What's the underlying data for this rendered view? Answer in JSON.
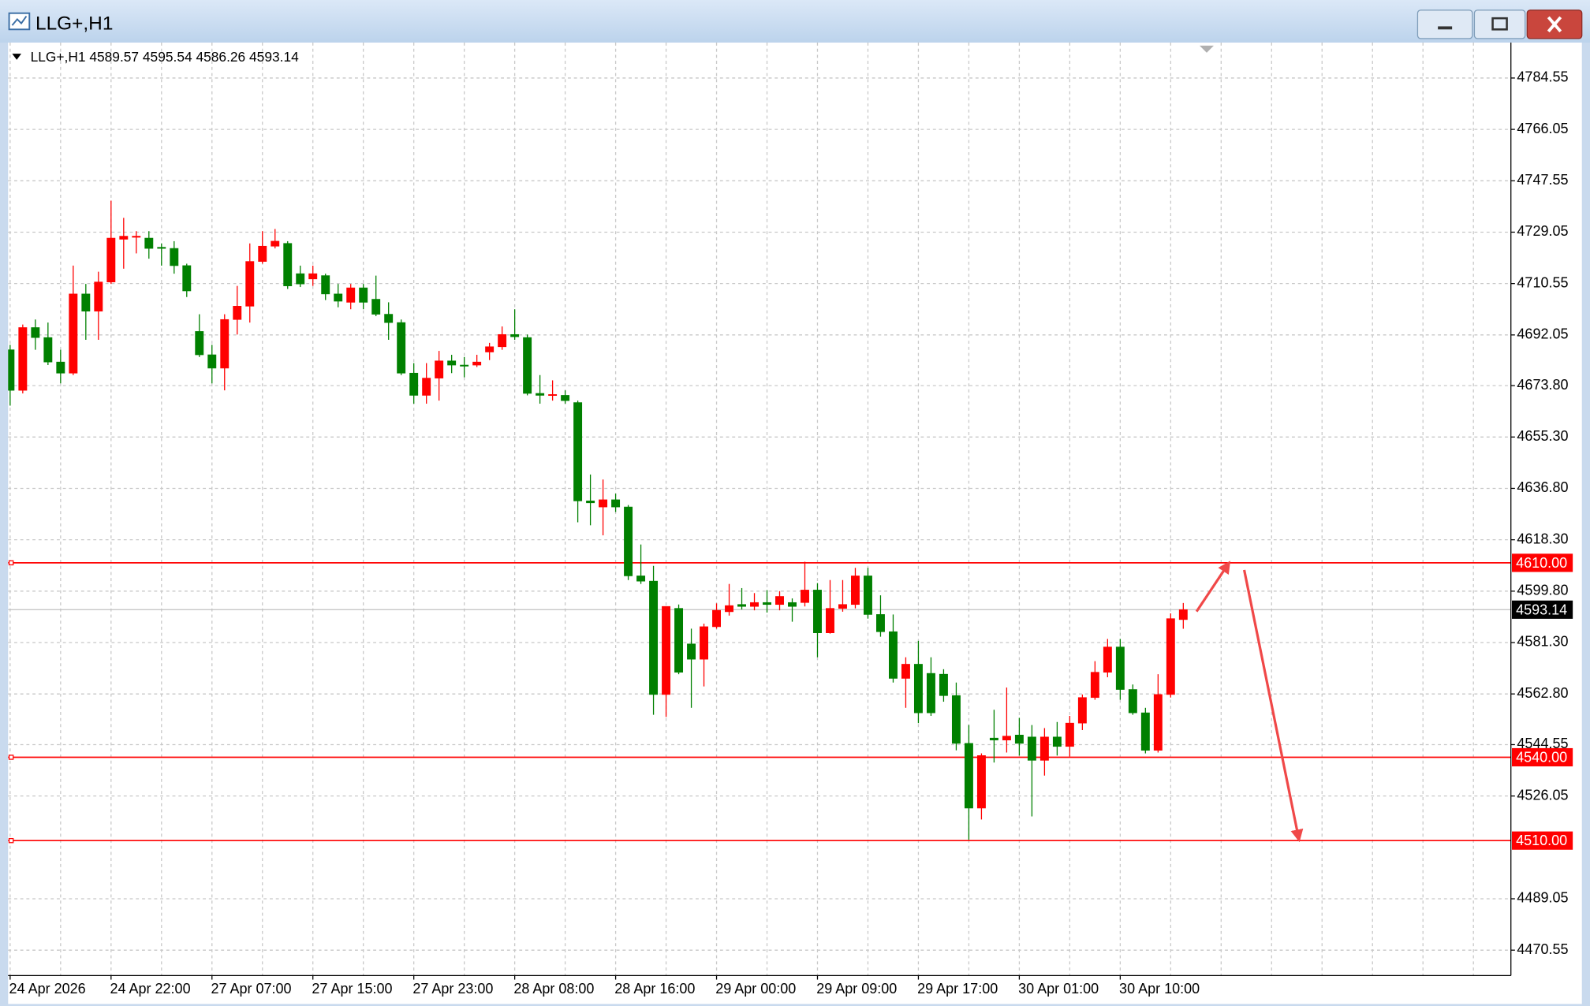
{
  "chart_data": {
    "type": "candlestick",
    "window_title": "LLG+,H1",
    "info": "LLG+,H1  4589.57 4595.54 4586.26 4593.14",
    "categories": [
      "24 Apr 2026",
      null,
      null,
      null,
      null,
      null,
      null,
      null,
      "24 Apr 22:00",
      null,
      null,
      null,
      null,
      null,
      null,
      null,
      "27 Apr 07:00",
      null,
      null,
      null,
      null,
      null,
      null,
      null,
      "27 Apr 15:00",
      null,
      null,
      null,
      null,
      null,
      null,
      null,
      "27 Apr 23:00",
      null,
      null,
      null,
      null,
      null,
      null,
      null,
      "28 Apr 08:00",
      null,
      null,
      null,
      null,
      null,
      null,
      null,
      "28 Apr 16:00",
      null,
      null,
      null,
      null,
      null,
      null,
      null,
      "29 Apr 00:00",
      null,
      null,
      null,
      null,
      null,
      null,
      null,
      "29 Apr 09:00",
      null,
      null,
      null,
      null,
      null,
      null,
      null,
      "29 Apr 17:00",
      null,
      null,
      null,
      null,
      null,
      null,
      null,
      "30 Apr 01:00",
      null,
      null,
      null,
      null,
      null,
      null,
      null,
      "30 Apr 10:00",
      null,
      null,
      null,
      null,
      null
    ],
    "open": [
      4686.7,
      4672.1,
      4694.7,
      4691.1,
      4682.3,
      4678.3,
      4706.8,
      4700.6,
      4711.1,
      4726.5,
      4727.2,
      4726.9,
      4723.6,
      4723.2,
      4717.0,
      4693.3,
      4684.9,
      4680.1,
      4697.6,
      4702.4,
      4718.5,
      4724.0,
      4725.0,
      4714.1,
      4712.2,
      4713.4,
      4706.8,
      4703.8,
      4709.0,
      4704.9,
      4699.5,
      4696.5,
      4678.3,
      4670.3,
      4676.5,
      4682.7,
      4681.2,
      4681.2,
      4685.9,
      4687.8,
      4692.2,
      4691.1,
      4671.0,
      4670.3,
      4670.3,
      4667.7,
      4632.3,
      4630.1,
      4632.7,
      4630.1,
      4605.3,
      4603.4,
      4562.6,
      4593.6,
      4580.8,
      4575.3,
      4587.0,
      4592.4,
      4595.0,
      4594.3,
      4595.7,
      4595.0,
      4595.7,
      4595.7,
      4600.2,
      4584.8,
      4593.6,
      4595.0,
      4605.3,
      4591.4,
      4585.2,
      4568.4,
      4573.5,
      4570.2,
      4569.9,
      4562.2,
      4545.0,
      4521.7,
      4546.9,
      4546.2,
      4548.0,
      4547.3,
      4538.9,
      4547.3,
      4543.9,
      4552.3,
      4561.5,
      4570.6,
      4579.7,
      4564.4,
      4556.0,
      4542.5,
      4562.6,
      4589.57
    ],
    "high": [
      4688.5,
      4695.8,
      4697.6,
      4696.5,
      4686.7,
      4717.0,
      4710.4,
      4714.8,
      4740.4,
      4734.2,
      4729.4,
      4729.4,
      4725.0,
      4725.8,
      4717.7,
      4699.5,
      4688.5,
      4699.5,
      4709.7,
      4725.0,
      4729.4,
      4730.2,
      4725.8,
      4717.0,
      4717.0,
      4714.1,
      4710.4,
      4710.4,
      4710.4,
      4713.4,
      4703.8,
      4697.6,
      4681.9,
      4681.9,
      4686.3,
      4684.9,
      4684.1,
      4684.9,
      4689.2,
      4695.1,
      4701.3,
      4692.2,
      4677.6,
      4675.7,
      4672.1,
      4668.4,
      4641.8,
      4640.0,
      4634.9,
      4630.8,
      4616.6,
      4608.9,
      4594.3,
      4595.0,
      4586.3,
      4588.1,
      4595.4,
      4602.4,
      4600.9,
      4599.1,
      4600.2,
      4599.8,
      4597.2,
      4610.4,
      4602.7,
      4603.8,
      4603.8,
      4608.2,
      4608.2,
      4598.3,
      4591.4,
      4576.0,
      4581.9,
      4576.0,
      4571.7,
      4566.9,
      4551.6,
      4541.4,
      4557.1,
      4565.1,
      4554.2,
      4551.6,
      4550.5,
      4552.7,
      4554.9,
      4562.6,
      4574.6,
      4582.6,
      4582.6,
      4566.2,
      4557.8,
      4569.9,
      4591.8,
      4595.54
    ],
    "low": [
      4666.6,
      4671.0,
      4686.7,
      4681.2,
      4674.6,
      4677.6,
      4690.3,
      4690.3,
      4710.4,
      4715.9,
      4721.4,
      4719.5,
      4717.0,
      4714.1,
      4705.7,
      4684.1,
      4674.6,
      4672.1,
      4692.2,
      4696.5,
      4717.7,
      4723.2,
      4708.6,
      4709.3,
      4709.7,
      4704.6,
      4702.0,
      4701.3,
      4701.3,
      4698.8,
      4690.3,
      4677.6,
      4667.3,
      4667.3,
      4668.4,
      4678.3,
      4676.8,
      4680.5,
      4683.0,
      4686.7,
      4690.3,
      4670.3,
      4667.3,
      4668.4,
      4667.3,
      4624.6,
      4623.5,
      4619.9,
      4628.3,
      4603.8,
      4602.4,
      4555.3,
      4554.5,
      4569.9,
      4557.8,
      4565.5,
      4586.3,
      4591.0,
      4593.2,
      4592.9,
      4592.1,
      4592.9,
      4588.8,
      4594.3,
      4576.0,
      4584.5,
      4592.4,
      4593.6,
      4589.9,
      4583.4,
      4566.9,
      4557.8,
      4552.3,
      4554.9,
      4560.0,
      4542.5,
      4510.3,
      4517.6,
      4538.1,
      4541.7,
      4540.6,
      4518.7,
      4533.4,
      4540.6,
      4540.3,
      4549.8,
      4560.7,
      4568.8,
      4560.7,
      4555.3,
      4541.4,
      4541.7,
      4561.5,
      4586.26
    ],
    "close": [
      4672.1,
      4694.7,
      4691.1,
      4682.3,
      4678.3,
      4706.8,
      4700.6,
      4711.1,
      4726.9,
      4727.6,
      4727.6,
      4723.2,
      4723.2,
      4717.0,
      4707.9,
      4684.9,
      4680.1,
      4697.6,
      4702.4,
      4718.5,
      4724.0,
      4725.8,
      4709.7,
      4710.4,
      4714.1,
      4706.8,
      4704.2,
      4709.0,
      4703.8,
      4699.5,
      4696.5,
      4678.3,
      4670.3,
      4676.5,
      4682.7,
      4681.2,
      4680.8,
      4682.3,
      4687.8,
      4692.2,
      4691.4,
      4671.0,
      4670.3,
      4670.6,
      4668.4,
      4632.3,
      4631.6,
      4632.7,
      4630.1,
      4605.3,
      4603.4,
      4562.6,
      4594.3,
      4570.6,
      4575.3,
      4587.0,
      4592.9,
      4594.6,
      4594.3,
      4595.7,
      4595.0,
      4597.9,
      4594.3,
      4600.2,
      4584.8,
      4593.6,
      4595.0,
      4605.3,
      4591.4,
      4585.2,
      4568.4,
      4573.5,
      4556.0,
      4556.0,
      4562.2,
      4545.0,
      4521.7,
      4540.6,
      4546.2,
      4547.6,
      4545.0,
      4538.9,
      4547.3,
      4543.9,
      4552.3,
      4561.5,
      4570.6,
      4579.7,
      4564.4,
      4556.0,
      4542.5,
      4562.6,
      4589.9,
      4593.14
    ],
    "up_color": "#ff0000",
    "down_color": "#008000",
    "ylim": [
      4461.4,
      4797.3
    ],
    "yticks": [
      4784.55,
      4766.05,
      4747.55,
      4729.05,
      4710.55,
      4692.05,
      {
        "value": 4673.8,
        "label": "4673.80"
      },
      {
        "value": 4655.3,
        "label": "4655.30"
      },
      {
        "value": 4636.8,
        "label": "4636.80"
      },
      {
        "value": 4618.3,
        "label": "4618.30"
      },
      {
        "value": 4599.8,
        "label": "4599.80"
      },
      {
        "value": 4581.3,
        "label": "4581.30"
      },
      {
        "value": 4562.8,
        "label": "4562.80"
      },
      4544.55,
      4526.05,
      4489.05,
      4470.55
    ],
    "grid": true,
    "levels": [
      {
        "value": 4610,
        "label": "4610.00"
      },
      {
        "value": 4540,
        "label": "4540.00"
      },
      {
        "value": 4510,
        "label": "4510.00"
      }
    ],
    "level_color": "#ff0000",
    "current_price": {
      "value": 4593.14,
      "label": "4593.14"
    }
  }
}
